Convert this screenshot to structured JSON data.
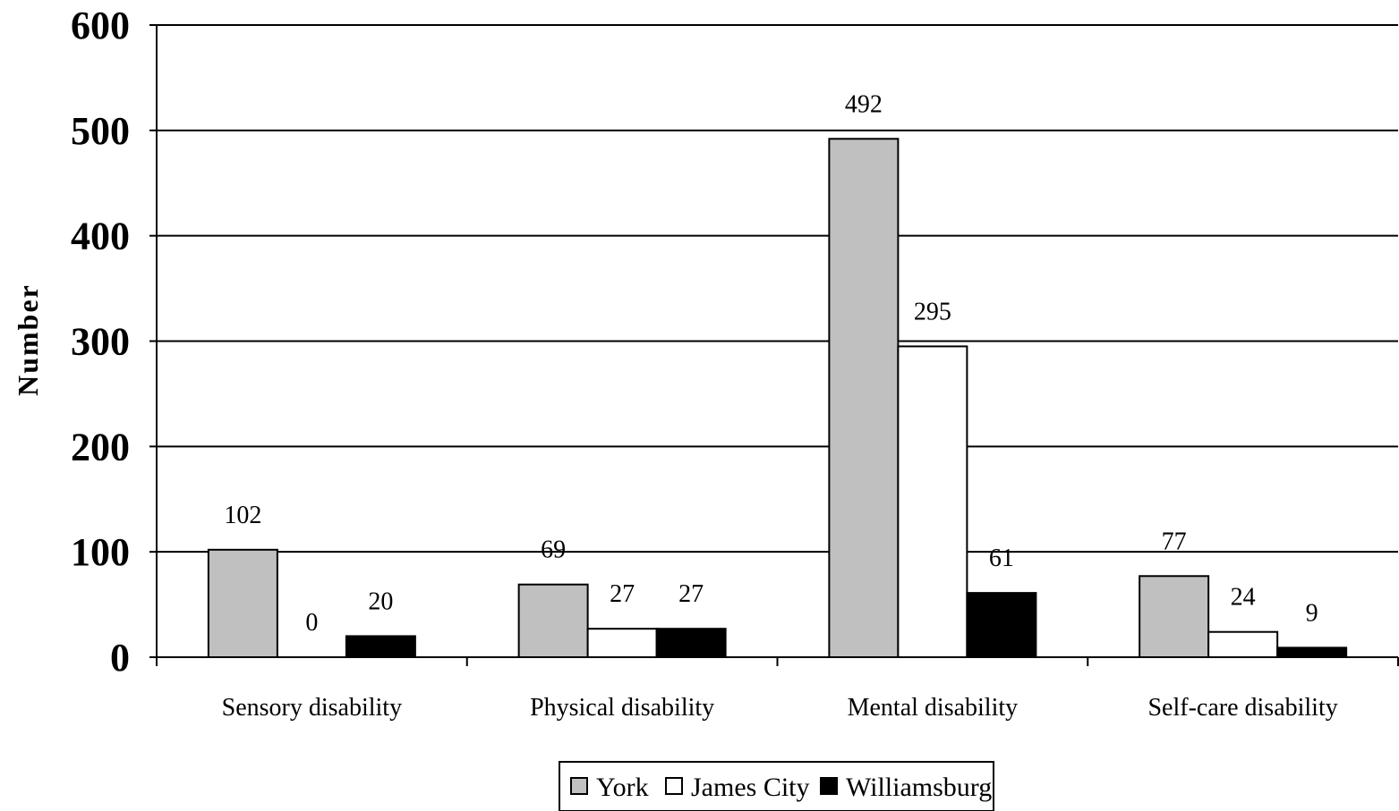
{
  "chart_data": {
    "type": "bar",
    "title": "",
    "xlabel": "",
    "ylabel": "Number",
    "ylim": [
      0,
      600
    ],
    "yticks": [
      0,
      100,
      200,
      300,
      400,
      500,
      600
    ],
    "grid": true,
    "legend_position": "bottom",
    "categories": [
      "Sensory disability",
      "Physical disability",
      "Mental disability",
      "Self-care disability"
    ],
    "series": [
      {
        "name": "York",
        "color": "#c0c0c0",
        "values": [
          102,
          69,
          492,
          77
        ]
      },
      {
        "name": "James City",
        "color": "#ffffff",
        "values": [
          0,
          27,
          295,
          24
        ]
      },
      {
        "name": "Williamsburg",
        "color": "#000000",
        "values": [
          20,
          27,
          61,
          9
        ]
      }
    ]
  }
}
